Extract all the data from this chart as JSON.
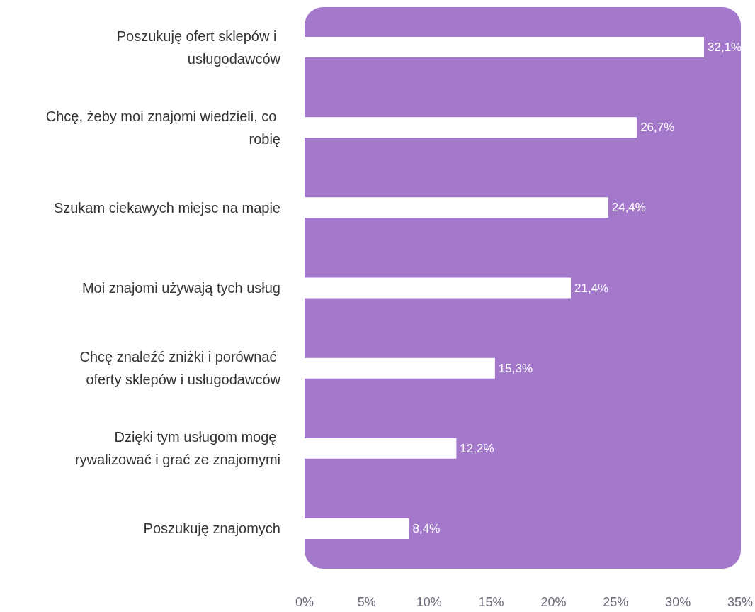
{
  "chart_data": {
    "type": "bar",
    "orientation": "horizontal",
    "color": "#ffffff",
    "categories": [
      "Poszukuję ofert sklepów i usługodawców",
      "Chcę, żeby moi znajomi wiedzieli, co robię",
      "Szukam ciekawych miejsc na mapie",
      "Moi znajomi używają tych usług",
      "Chcę znaleźć zniżki i porównać oferty sklepów i usługodawców",
      "Dzięki tym usługom mogę rywalizować i grać ze znajomymi",
      "Poszukuję znajomych"
    ],
    "values": [
      32.1,
      26.7,
      24.4,
      21.4,
      15.3,
      12.2,
      8.4
    ],
    "value_labels": [
      "32,1%",
      "26,7%",
      "24,4%",
      "21,4%",
      "15,3%",
      "12,2%",
      "8,4%"
    ],
    "xlim": [
      0,
      35
    ],
    "xticks": [
      {
        "value": 0,
        "label": "0%"
      },
      {
        "value": 5,
        "label": "5%"
      },
      {
        "value": 10,
        "label": "10%"
      },
      {
        "value": 15,
        "label": "15%"
      },
      {
        "value": 20,
        "label": "20%"
      },
      {
        "value": 25,
        "label": "25%"
      },
      {
        "value": 30,
        "label": "30%"
      },
      {
        "value": 35,
        "label": "35%"
      }
    ],
    "grid": false
  }
}
